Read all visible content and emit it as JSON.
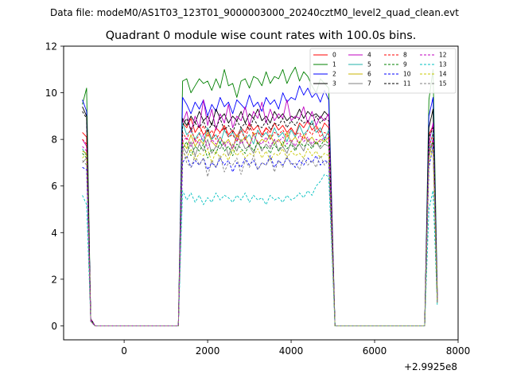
{
  "chart_data": {
    "type": "line",
    "suptitle": "Data file: modeM0/AS1T03_123T01_9000003000_20240cztM0_level2_quad_clean.evt",
    "title": "Quadrant 0 module wise count rates with 100.0s bins.",
    "xlabel": "",
    "ylabel": "",
    "x_offset_label": "+2.9925e8",
    "xlim": [
      -1450,
      8000
    ],
    "ylim": [
      -0.6,
      12.0
    ],
    "xticks": [
      0,
      2000,
      4000,
      6000,
      8000
    ],
    "yticks": [
      0,
      2,
      4,
      6,
      8,
      10,
      12
    ],
    "grid": false,
    "legend_placement": "top-right",
    "segments": [
      {
        "start": -1000,
        "count": 3
      },
      {
        "start": 1400,
        "count": 36
      },
      {
        "start": 7300,
        "count": 3
      }
    ],
    "gaps": [
      {
        "start": -700,
        "end": 1300
      },
      {
        "start": 5050,
        "end": 7200
      }
    ],
    "series": [
      {
        "name": "0",
        "color": "#ff0000",
        "dash": "solid",
        "segments": [
          [
            8.3,
            8.1,
            0.3
          ],
          [
            8.7,
            8.5,
            8.9,
            8.3,
            8.6,
            8.2,
            8.4,
            8.0,
            8.5,
            8.3,
            8.6,
            8.2,
            8.4,
            8.1,
            8.5,
            8.3,
            8.7,
            8.4,
            8.6,
            8.2,
            8.5,
            8.3,
            8.7,
            8.4,
            8.6,
            8.3,
            8.5,
            8.2,
            8.7,
            8.5,
            8.8,
            8.4,
            8.6,
            8.3,
            8.7,
            8.5
          ],
          [
            8.2,
            8.6,
            1.4
          ]
        ]
      },
      {
        "name": "1",
        "color": "#008000",
        "dash": "solid",
        "segments": [
          [
            9.5,
            10.2,
            0.2
          ],
          [
            10.5,
            10.6,
            10.0,
            10.3,
            10.6,
            10.4,
            10.5,
            10.1,
            10.6,
            10.2,
            11.0,
            10.3,
            10.4,
            9.8,
            10.5,
            10.6,
            10.2,
            10.7,
            10.6,
            10.3,
            10.9,
            10.4,
            10.7,
            10.6,
            11.0,
            10.4,
            10.8,
            11.1,
            10.5,
            10.9,
            10.7,
            10.3,
            10.0,
            10.6,
            10.4,
            10.2
          ],
          [
            9.7,
            11.0,
            1.5
          ]
        ]
      },
      {
        "name": "2",
        "color": "#0000ff",
        "dash": "solid",
        "segments": [
          [
            9.7,
            9.2,
            0.3
          ],
          [
            9.8,
            9.5,
            9.1,
            9.6,
            9.3,
            9.7,
            9.0,
            9.5,
            9.2,
            9.8,
            9.4,
            9.6,
            9.1,
            9.7,
            9.5,
            9.3,
            9.9,
            9.4,
            9.6,
            9.2,
            9.8,
            9.5,
            9.7,
            9.3,
            10.0,
            9.6,
            9.8,
            9.7,
            10.3,
            9.9,
            10.2,
            9.8,
            10.0,
            9.6,
            10.1,
            9.7
          ],
          [
            9.0,
            9.8,
            1.3
          ]
        ]
      },
      {
        "name": "3",
        "color": "#000000",
        "dash": "solid",
        "segments": [
          [
            9.4,
            9.0,
            0.3
          ],
          [
            8.9,
            8.6,
            9.0,
            8.7,
            9.2,
            8.8,
            9.0,
            8.6,
            9.3,
            8.9,
            9.1,
            8.7,
            9.0,
            8.8,
            9.2,
            8.7,
            9.1,
            8.9,
            9.3,
            8.8,
            9.0,
            8.7,
            9.2,
            8.9,
            9.1,
            8.8,
            9.0,
            8.9,
            9.3,
            8.9,
            9.2,
            9.0,
            9.1,
            8.9,
            9.2,
            9.0
          ],
          [
            8.5,
            9.3,
            1.2
          ]
        ]
      },
      {
        "name": "4",
        "color": "#c000c0",
        "dash": "solid",
        "segments": [
          [
            8.0,
            7.7,
            0.3
          ],
          [
            8.7,
            9.2,
            8.3,
            9.0,
            8.5,
            9.7,
            8.6,
            9.3,
            8.4,
            9.1,
            8.7,
            9.5,
            8.5,
            9.0,
            8.8,
            9.4,
            8.6,
            9.2,
            8.9,
            9.6,
            8.7,
            9.3,
            8.8,
            9.1,
            8.9,
            9.7,
            8.8,
            9.0,
            8.9,
            9.4,
            8.7,
            9.2,
            8.6,
            9.0,
            8.8,
            9.1
          ],
          [
            7.8,
            8.7,
            1.1
          ]
        ]
      },
      {
        "name": "5",
        "color": "#20b2aa",
        "dash": "solid",
        "segments": [
          [
            7.6,
            7.3,
            0.2
          ],
          [
            8.7,
            8.2,
            8.4,
            8.0,
            8.3,
            7.9,
            8.5,
            8.0,
            8.2,
            7.8,
            8.4,
            8.1,
            8.3,
            7.9,
            8.5,
            8.0,
            8.2,
            7.8,
            8.4,
            8.1,
            8.3,
            8.0,
            8.5,
            8.1,
            8.3,
            7.9,
            8.4,
            8.1,
            8.6,
            8.2,
            8.4,
            8.8,
            8.3,
            8.5,
            8.0,
            8.4
          ],
          [
            7.6,
            8.3,
            1.0
          ]
        ]
      },
      {
        "name": "6",
        "color": "#c8b400",
        "dash": "solid",
        "segments": [
          [
            7.5,
            7.4,
            0.2
          ],
          [
            7.9,
            7.6,
            8.2,
            7.7,
            8.0,
            7.8,
            8.3,
            7.9,
            7.7,
            8.1,
            7.8,
            8.0,
            7.6,
            8.2,
            7.9,
            8.1,
            7.7,
            8.3,
            7.8,
            8.0,
            7.9,
            8.2,
            7.8,
            8.0,
            7.7,
            8.3,
            7.9,
            8.1,
            7.8,
            8.2,
            7.9,
            8.1,
            7.8,
            8.0,
            7.9,
            8.1
          ],
          [
            7.2,
            8.0,
            1.0
          ]
        ]
      },
      {
        "name": "7",
        "color": "#808080",
        "dash": "solid",
        "segments": [
          [
            7.0,
            7.2,
            0.2
          ],
          [
            7.7,
            7.4,
            7.9,
            7.3,
            7.8,
            7.5,
            8.0,
            7.4,
            7.7,
            7.6,
            7.9,
            7.3,
            7.8,
            7.5,
            8.0,
            7.6,
            7.7,
            7.4,
            7.9,
            7.5,
            7.8,
            7.6,
            8.0,
            7.5,
            7.7,
            7.4,
            7.9,
            7.6,
            7.8,
            7.5,
            8.0,
            7.7,
            7.9,
            7.6,
            7.8,
            7.7
          ],
          [
            7.4,
            7.8,
            1.0
          ]
        ]
      },
      {
        "name": "8",
        "color": "#ff0000",
        "dash": "dashed",
        "segments": [
          [
            8.0,
            7.8,
            0.2
          ],
          [
            8.3,
            8.0,
            8.5,
            7.9,
            8.2,
            8.6,
            8.1,
            8.4,
            8.0,
            8.3,
            8.5,
            8.1,
            8.2,
            7.9,
            8.4,
            8.0,
            8.6,
            8.2,
            8.3,
            8.1,
            8.5,
            8.0,
            8.3,
            8.2,
            8.4,
            8.1,
            8.5,
            8.2,
            8.3,
            8.0,
            8.4,
            8.2,
            8.5,
            8.1,
            8.3,
            8.2
          ],
          [
            7.7,
            8.2,
            1.1
          ]
        ]
      },
      {
        "name": "9",
        "color": "#008000",
        "dash": "dashed",
        "segments": [
          [
            7.4,
            7.2,
            0.2
          ],
          [
            7.6,
            7.9,
            7.3,
            7.7,
            7.5,
            7.8,
            7.2,
            7.6,
            7.4,
            7.9,
            7.5,
            7.7,
            7.3,
            7.8,
            7.6,
            7.4,
            7.8,
            7.5,
            7.9,
            7.6,
            7.7,
            7.4,
            7.8,
            7.5,
            7.9,
            7.6,
            7.8,
            7.5,
            7.9,
            7.7,
            7.8,
            7.6,
            7.9,
            7.7,
            8.0,
            7.8
          ],
          [
            7.5,
            7.9,
            1.0
          ]
        ]
      },
      {
        "name": "10",
        "color": "#0000ff",
        "dash": "dashed",
        "segments": [
          [
            6.8,
            6.7,
            0.2
          ],
          [
            7.0,
            7.3,
            6.8,
            7.1,
            6.9,
            7.2,
            6.7,
            7.0,
            6.8,
            7.2,
            6.9,
            7.1,
            6.6,
            7.0,
            6.8,
            7.2,
            6.9,
            7.1,
            6.7,
            7.0,
            6.9,
            7.3,
            6.8,
            7.1,
            6.9,
            7.2,
            7.0,
            6.8,
            7.1,
            6.9,
            7.2,
            7.0,
            7.3,
            6.9,
            7.1,
            7.0
          ],
          [
            6.8,
            7.7,
            1.0
          ]
        ]
      },
      {
        "name": "11",
        "color": "#000000",
        "dash": "dashed",
        "segments": [
          [
            9.2,
            8.9,
            0.3
          ],
          [
            8.6,
            8.9,
            8.4,
            8.7,
            8.5,
            8.8,
            8.3,
            8.7,
            8.5,
            8.9,
            8.4,
            8.6,
            8.3,
            8.8,
            8.5,
            8.7,
            8.4,
            8.9,
            8.6,
            8.5,
            8.8,
            8.4,
            8.7,
            8.6,
            8.9,
            8.5,
            8.8,
            8.6,
            8.9,
            8.7,
            8.8,
            8.6,
            9.0,
            8.7,
            8.9,
            8.8
          ],
          [
            8.1,
            8.5,
            1.2
          ]
        ]
      },
      {
        "name": "12",
        "color": "#c000c0",
        "dash": "dashed",
        "segments": [
          [
            7.7,
            7.5,
            0.2
          ],
          [
            7.9,
            8.1,
            7.7,
            8.0,
            7.8,
            8.2,
            7.6,
            8.0,
            7.8,
            8.1,
            7.7,
            7.9,
            7.6,
            8.1,
            7.8,
            8.0,
            7.7,
            8.2,
            7.9,
            7.8,
            8.1,
            7.7,
            8.0,
            7.9,
            8.1,
            7.8,
            8.0,
            7.7,
            8.2,
            7.9,
            8.1,
            7.8,
            8.0,
            7.9,
            8.1,
            8.0
          ],
          [
            7.5,
            8.0,
            1.0
          ]
        ]
      },
      {
        "name": "13",
        "color": "#00c0c0",
        "dash": "dashed",
        "segments": [
          [
            5.6,
            5.2,
            0.2
          ],
          [
            5.8,
            5.4,
            5.7,
            5.3,
            5.6,
            5.2,
            5.5,
            5.3,
            5.7,
            5.4,
            5.6,
            5.5,
            5.3,
            5.6,
            5.4,
            5.7,
            5.3,
            5.6,
            5.4,
            5.5,
            5.2,
            5.6,
            5.4,
            5.5,
            5.3,
            5.6,
            5.4,
            5.5,
            5.7,
            5.5,
            5.8,
            5.6,
            6.0,
            6.2,
            6.5,
            6.4
          ],
          [
            5.0,
            5.8,
            0.9
          ]
        ]
      },
      {
        "name": "14",
        "color": "#c8c800",
        "dash": "dashed",
        "segments": [
          [
            7.2,
            7.4,
            0.2
          ],
          [
            7.5,
            7.2,
            7.6,
            7.1,
            7.4,
            7.3,
            7.6,
            7.0,
            7.5,
            7.2,
            7.4,
            7.1,
            7.6,
            7.3,
            7.5,
            7.2,
            7.4,
            7.3,
            7.6,
            7.2,
            7.5,
            7.1,
            7.4,
            7.3,
            7.6,
            7.2,
            7.5,
            7.3,
            7.4,
            7.2,
            7.6,
            7.3,
            7.5,
            7.2,
            7.4,
            7.3
          ],
          [
            7.0,
            7.6,
            1.0
          ]
        ]
      },
      {
        "name": "15",
        "color": "#808080",
        "dash": "dashed",
        "segments": [
          [
            7.1,
            6.9,
            0.2
          ],
          [
            7.6,
            7.0,
            6.8,
            7.3,
            6.9,
            7.2,
            6.4,
            7.1,
            6.8,
            7.3,
            6.6,
            7.0,
            6.9,
            7.2,
            6.5,
            7.1,
            6.8,
            7.3,
            6.7,
            7.0,
            6.9,
            7.2,
            6.6,
            7.1,
            6.8,
            7.3,
            6.9,
            7.0,
            6.7,
            7.2,
            6.9,
            7.1,
            6.8,
            7.3,
            6.9,
            7.1
          ],
          [
            7.3,
            7.6,
            1.0
          ]
        ]
      }
    ]
  }
}
